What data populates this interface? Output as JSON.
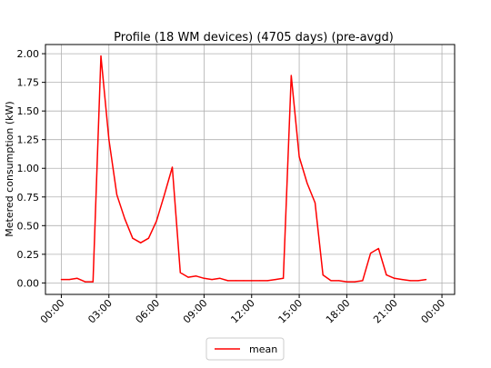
{
  "chart_data": {
    "type": "line",
    "title": "Profile (18 WM devices) (4705 days) (pre-avgd)",
    "xlabel": "",
    "ylabel": "Metered consumption (kW)",
    "x_unit": "hours",
    "xlim": [
      -1.0,
      24.8
    ],
    "ylim": [
      -0.1,
      2.08
    ],
    "xticks": [
      0,
      3,
      6,
      9,
      12,
      15,
      18,
      21,
      24
    ],
    "xtick_labels": [
      "00:00",
      "03:00",
      "06:00",
      "09:00",
      "12:00",
      "15:00",
      "18:00",
      "21:00",
      "00:00"
    ],
    "yticks": [
      0.0,
      0.25,
      0.5,
      0.75,
      1.0,
      1.25,
      1.5,
      1.75,
      2.0
    ],
    "ytick_labels": [
      "0.00",
      "0.25",
      "0.50",
      "0.75",
      "1.00",
      "1.25",
      "1.50",
      "1.75",
      "2.00"
    ],
    "grid": true,
    "legend": "bottom-center",
    "series": [
      {
        "name": "mean",
        "color": "#ff0000",
        "x": [
          0,
          0.5,
          1,
          1.5,
          2,
          2.5,
          3,
          3.5,
          4,
          4.5,
          5,
          5.5,
          6,
          6.5,
          7,
          7.5,
          8,
          8.5,
          9,
          9.5,
          10,
          10.5,
          11,
          11.5,
          12,
          12.5,
          13,
          13.5,
          14,
          14.5,
          15,
          15.5,
          16,
          16.5,
          17,
          17.5,
          18,
          18.5,
          19,
          19.5,
          20,
          20.5,
          21,
          21.5,
          22,
          22.5,
          23
        ],
        "values": [
          0.03,
          0.03,
          0.04,
          0.01,
          0.01,
          1.98,
          1.25,
          0.77,
          0.56,
          0.39,
          0.35,
          0.39,
          0.54,
          0.77,
          1.01,
          0.09,
          0.05,
          0.06,
          0.04,
          0.03,
          0.04,
          0.02,
          0.02,
          0.02,
          0.02,
          0.02,
          0.02,
          0.03,
          0.04,
          1.81,
          1.1,
          0.87,
          0.7,
          0.07,
          0.02,
          0.02,
          0.01,
          0.01,
          0.02,
          0.26,
          0.3,
          0.07,
          0.04,
          0.03,
          0.02,
          0.02,
          0.03
        ]
      }
    ]
  }
}
